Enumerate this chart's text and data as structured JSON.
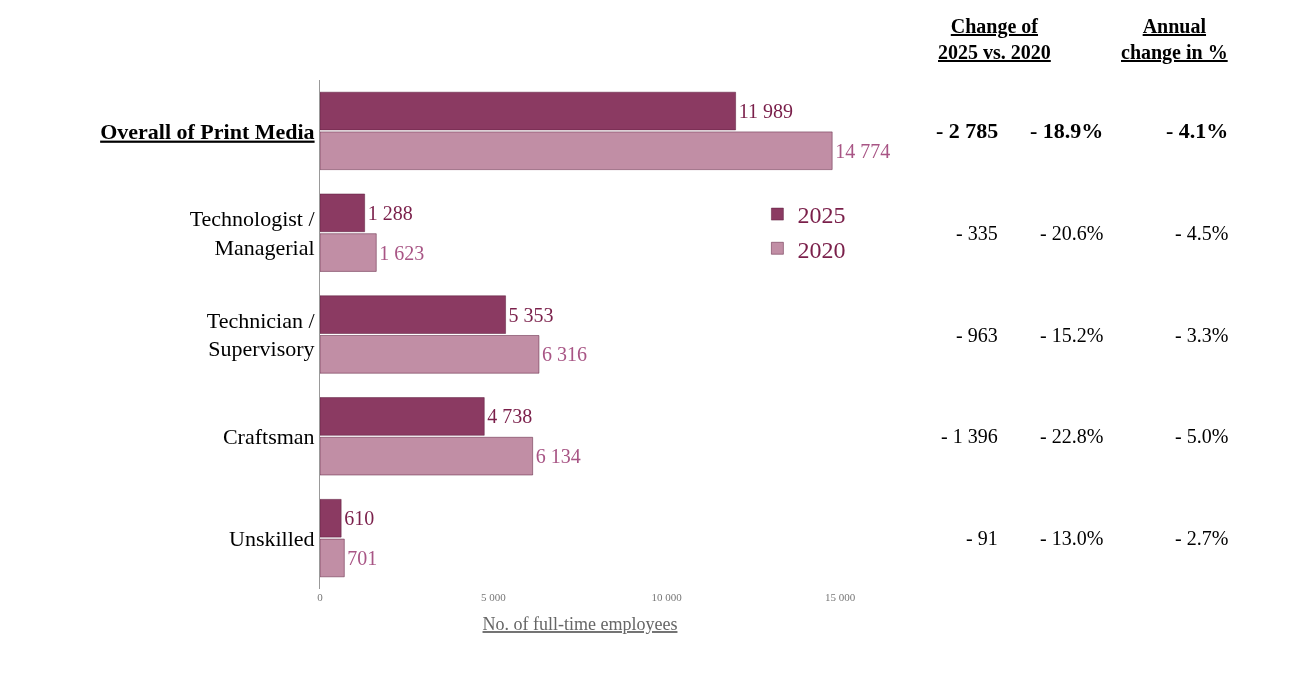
{
  "chart_data": {
    "type": "bar",
    "orientation": "horizontal",
    "categories": [
      "Overall of Print Media",
      "Technologist /\nManagerial",
      "Technician /\nSupervisory",
      "Craftsman",
      "Unskilled"
    ],
    "series": [
      {
        "name": "2025",
        "color": "#8b3a62",
        "values": [
          11989,
          1288,
          5353,
          4738,
          610
        ],
        "value_labels": [
          "11 989",
          "1 288",
          "5 353",
          "4 738",
          "610"
        ]
      },
      {
        "name": "2020",
        "color": "#c18ea5",
        "values": [
          14774,
          1623,
          6316,
          6134,
          701
        ],
        "value_labels": [
          "14 774",
          "1 623",
          "6 316",
          "6 134",
          "701"
        ]
      }
    ],
    "xlim": [
      0,
      15000
    ],
    "xticks": [
      0,
      {
        "value": 5000,
        "label": "5 000"
      },
      {
        "value": 10000,
        "label": "10 000"
      },
      {
        "value": 15000,
        "label": "15 000"
      }
    ],
    "xlabel": "No. of full-time employees",
    "legend": "right",
    "annotations": [
      "Change of\n2025 vs. 2020",
      "Annual\nchange in %",
      "- 2 785",
      "- 18.9%",
      "- 4.1%",
      "- 335",
      "- 20.6%",
      "- 4.5%",
      "- 963",
      "- 15.2%",
      "- 3.3%",
      "- 1 396",
      "- 22.8%",
      "- 5.0%",
      "- 91",
      "- 13.0%",
      "- 2.7%"
    ]
  }
}
